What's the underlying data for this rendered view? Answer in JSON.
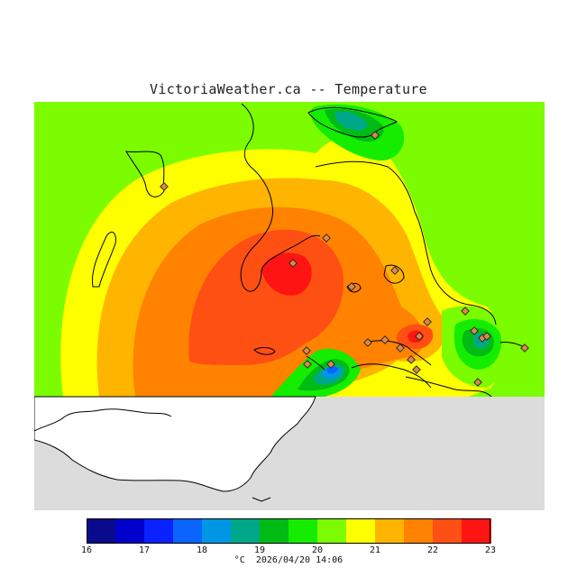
{
  "title": "VictoriaWeather.ca -- Temperature",
  "legend": {
    "unit": "°C",
    "timestamp": "2026/04/20 14:06",
    "tick_labels": [
      "16",
      "17",
      "18",
      "19",
      "20",
      "21",
      "22",
      "23"
    ],
    "colors": [
      "#0a0a8c",
      "#0000cd",
      "#0a22ff",
      "#0a64ff",
      "#0096e6",
      "#00a88a",
      "#00bb14",
      "#14ec00",
      "#7cfc00",
      "#ffff00",
      "#ffb400",
      "#ff8200",
      "#ff5014",
      "#ff1414"
    ],
    "bands": [
      {
        "min": 16.0,
        "max": 16.5
      },
      {
        "min": 16.5,
        "max": 17.0
      },
      {
        "min": 17.0,
        "max": 17.5
      },
      {
        "min": 17.5,
        "max": 18.0
      },
      {
        "min": 18.0,
        "max": 18.5
      },
      {
        "min": 18.5,
        "max": 19.0
      },
      {
        "min": 19.0,
        "max": 19.5
      },
      {
        "min": 19.5,
        "max": 20.0
      },
      {
        "min": 20.0,
        "max": 20.5
      },
      {
        "min": 20.5,
        "max": 21.0
      },
      {
        "min": 21.0,
        "max": 21.5
      },
      {
        "min": 21.5,
        "max": 22.0
      },
      {
        "min": 22.0,
        "max": 22.5
      },
      {
        "min": 22.5,
        "max": 23.0
      }
    ]
  },
  "map": {
    "background_color": "#dcdcdc",
    "land_color": "#ffffff",
    "station_count": 22
  }
}
